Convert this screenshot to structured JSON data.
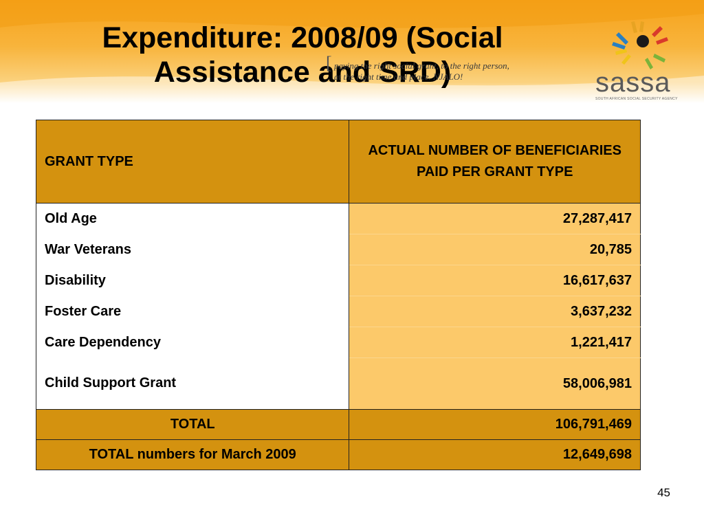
{
  "slide": {
    "title_line1": "Expenditure: 2008/09 (Social",
    "title_line2": "Assistance and SRD)",
    "tagline_line1": "paying the right social grant, to the right person,",
    "tagline_line2": "at the right time and place. NJALO!",
    "logo_name": "sassa",
    "logo_subtitle": "SOUTH AFRICAN SOCIAL SECURITY AGENCY",
    "page_number": "45"
  },
  "table": {
    "headers": [
      "GRANT TYPE",
      "ACTUAL NUMBER OF BENEFICIARIES PAID PER GRANT TYPE"
    ],
    "rows": [
      {
        "grant": "Old Age",
        "beneficiaries": "27,287,417"
      },
      {
        "grant": "War Veterans",
        "beneficiaries": "20,785"
      },
      {
        "grant": "Disability",
        "beneficiaries": "16,617,637"
      },
      {
        "grant": "Foster Care",
        "beneficiaries": "3,637,232"
      },
      {
        "grant": "Care Dependency",
        "beneficiaries": "1,221,417"
      },
      {
        "grant": "Child Support Grant",
        "beneficiaries": "58,006,981"
      }
    ],
    "totals": [
      {
        "label": "TOTAL",
        "value": "106,791,469"
      },
      {
        "label": "TOTAL numbers for March 2009",
        "value": "12,649,698"
      }
    ]
  },
  "colors": {
    "header_band": "#f6a21a",
    "table_header": "#d4920f",
    "value_cells": "#fcc96a"
  },
  "icons": [
    "hands-logo-icon"
  ]
}
